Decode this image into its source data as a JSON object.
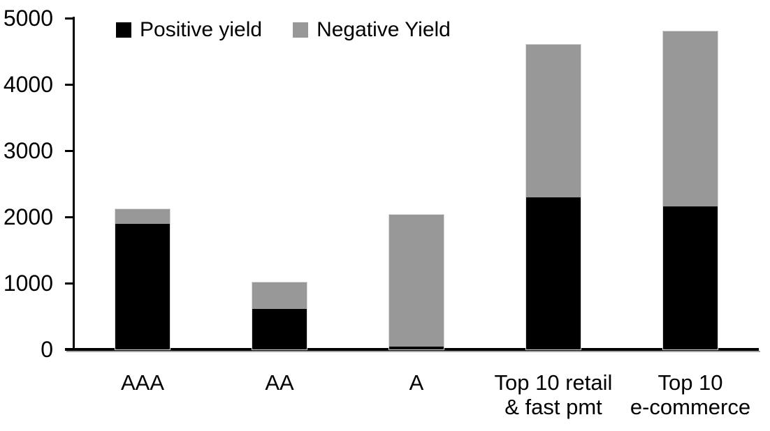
{
  "chart_data": {
    "type": "bar",
    "stacked": true,
    "title": "",
    "xlabel": "",
    "ylabel": "",
    "categories": [
      "AAA",
      "AA",
      "A",
      "Top 10 retail\n& fast pmt",
      "Top 10\ne-commerce"
    ],
    "series": [
      {
        "name": "Positive yield",
        "color": "#000000",
        "values": [
          1890,
          610,
          45,
          2300,
          2160
        ]
      },
      {
        "name": "Negative Yield",
        "color": "#989898",
        "values": [
          230,
          400,
          1985,
          2300,
          2640
        ]
      }
    ],
    "ylim": [
      0,
      5000
    ],
    "yticks": [
      0,
      1000,
      2000,
      3000,
      4000,
      5000
    ],
    "grid": false,
    "legend_position": "top-left"
  },
  "colors": {
    "axis": "#000000",
    "axis_shadow": "#a8a8a8",
    "bar_outline": "#d9d9d9",
    "text": "#000000",
    "background": "#ffffff"
  }
}
